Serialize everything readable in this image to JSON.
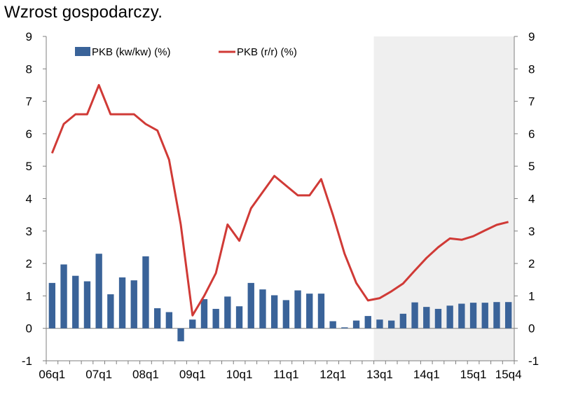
{
  "chart_data": {
    "type": "bar+line",
    "title": "Wzrost gospodarczy.",
    "categories": [
      "06q1",
      "06q2",
      "06q3",
      "06q4",
      "07q1",
      "07q2",
      "07q3",
      "07q4",
      "08q1",
      "08q2",
      "08q3",
      "08q4",
      "09q1",
      "09q2",
      "09q3",
      "09q4",
      "10q1",
      "10q2",
      "10q3",
      "10q4",
      "11q1",
      "11q2",
      "11q3",
      "11q4",
      "12q1",
      "12q2",
      "12q3",
      "12q4",
      "13q1",
      "13q2",
      "13q3",
      "13q4",
      "14q1",
      "14q2",
      "14q3",
      "14q4",
      "15q1",
      "15q2",
      "15q3",
      "15q4"
    ],
    "x_tick_labels": [
      "06q1",
      "07q1",
      "08q1",
      "09q1",
      "10q1",
      "11q1",
      "12q1",
      "13q1",
      "14q1",
      "15q1",
      "15q4"
    ],
    "ylim": [
      -1,
      9
    ],
    "y_ticks": [
      "-1",
      "0",
      "1",
      "2",
      "3",
      "4",
      "5",
      "6",
      "7",
      "8",
      "9"
    ],
    "forecast_start": "13q1",
    "series": [
      {
        "name": "PKB (kw/kw) (%)",
        "type": "bar",
        "color": "#3A6399",
        "values": [
          1.4,
          1.97,
          1.62,
          1.45,
          2.3,
          1.05,
          1.57,
          1.48,
          2.22,
          0.62,
          0.5,
          -0.4,
          0.27,
          0.9,
          0.6,
          0.98,
          0.68,
          1.4,
          1.2,
          1.02,
          0.87,
          1.17,
          1.07,
          1.07,
          0.22,
          0.03,
          0.24,
          0.38,
          0.27,
          0.24,
          0.45,
          0.8,
          0.66,
          0.6,
          0.7,
          0.76,
          0.79,
          0.79,
          0.81,
          0.81
        ]
      },
      {
        "name": "PKB (r/r) (%)",
        "type": "line",
        "color": "#D03A36",
        "values": [
          5.4,
          6.3,
          6.6,
          6.6,
          7.5,
          6.6,
          6.6,
          6.6,
          6.3,
          6.1,
          5.2,
          3.2,
          0.4,
          1.0,
          1.7,
          3.2,
          2.7,
          3.7,
          4.2,
          4.7,
          4.4,
          4.1,
          4.1,
          4.6,
          3.5,
          2.3,
          1.4,
          0.86,
          0.93,
          1.14,
          1.38,
          1.78,
          2.17,
          2.5,
          2.77,
          2.73,
          2.84,
          3.02,
          3.19,
          3.28
        ]
      }
    ],
    "colors": {
      "forecast_shade": "#EFEFEF",
      "axis": "#7F7F7F"
    }
  }
}
